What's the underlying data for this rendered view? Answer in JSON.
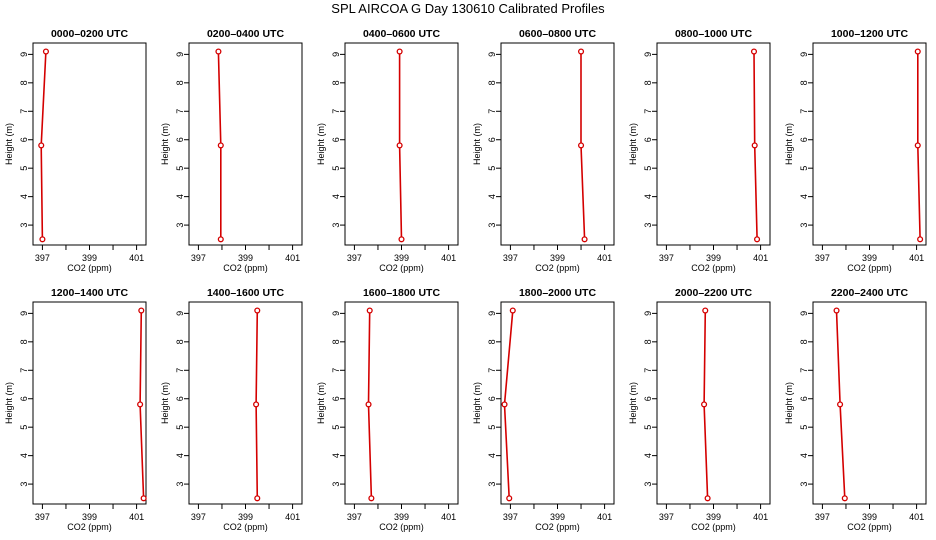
{
  "page": {
    "title": "SPL AIRCOA G  Day 130610  Calibrated Profiles"
  },
  "colors": {
    "profile": "#d40000",
    "axis": "#000000"
  },
  "chart_data": [
    {
      "type": "line",
      "title": "0000–0200 UTC",
      "xlabel": "CO2 (ppm)",
      "ylabel": "Height (m)",
      "xlim": [
        396.6,
        401.4
      ],
      "ylim": [
        2.3,
        9.4
      ],
      "xticks": [
        397,
        398,
        399,
        400,
        401
      ],
      "xtick_labels": [
        "397",
        "",
        "399",
        "",
        "401"
      ],
      "yticks": [
        3,
        4,
        5,
        6,
        7,
        8,
        9
      ],
      "series": [
        {
          "x": [
            397.0,
            396.95,
            397.15
          ],
          "y": [
            2.5,
            5.8,
            9.1
          ]
        }
      ]
    },
    {
      "type": "line",
      "title": "0200–0400 UTC",
      "xlabel": "CO2 (ppm)",
      "ylabel": "Height (m)",
      "xlim": [
        396.6,
        401.4
      ],
      "ylim": [
        2.3,
        9.4
      ],
      "xticks": [
        397,
        398,
        399,
        400,
        401
      ],
      "xtick_labels": [
        "397",
        "",
        "399",
        "",
        "401"
      ],
      "yticks": [
        3,
        4,
        5,
        6,
        7,
        8,
        9
      ],
      "series": [
        {
          "x": [
            397.95,
            397.95,
            397.85
          ],
          "y": [
            2.5,
            5.8,
            9.1
          ]
        }
      ]
    },
    {
      "type": "line",
      "title": "0400–0600 UTC",
      "xlabel": "CO2 (ppm)",
      "ylabel": "Height (m)",
      "xlim": [
        396.6,
        401.4
      ],
      "ylim": [
        2.3,
        9.4
      ],
      "xticks": [
        397,
        398,
        399,
        400,
        401
      ],
      "xtick_labels": [
        "397",
        "",
        "399",
        "",
        "401"
      ],
      "yticks": [
        3,
        4,
        5,
        6,
        7,
        8,
        9
      ],
      "series": [
        {
          "x": [
            399.0,
            398.92,
            398.92
          ],
          "y": [
            2.5,
            5.8,
            9.1
          ]
        }
      ]
    },
    {
      "type": "line",
      "title": "0600–0800 UTC",
      "xlabel": "CO2 (ppm)",
      "ylabel": "Height (m)",
      "xlim": [
        396.6,
        401.4
      ],
      "ylim": [
        2.3,
        9.4
      ],
      "xticks": [
        397,
        398,
        399,
        400,
        401
      ],
      "xtick_labels": [
        "397",
        "",
        "399",
        "",
        "401"
      ],
      "yticks": [
        3,
        4,
        5,
        6,
        7,
        8,
        9
      ],
      "series": [
        {
          "x": [
            400.15,
            400.0,
            400.0
          ],
          "y": [
            2.5,
            5.8,
            9.1
          ]
        }
      ]
    },
    {
      "type": "line",
      "title": "0800–1000 UTC",
      "xlabel": "CO2 (ppm)",
      "ylabel": "Height (m)",
      "xlim": [
        396.6,
        401.4
      ],
      "ylim": [
        2.3,
        9.4
      ],
      "xticks": [
        397,
        398,
        399,
        400,
        401
      ],
      "xtick_labels": [
        "397",
        "",
        "399",
        "",
        "401"
      ],
      "yticks": [
        3,
        4,
        5,
        6,
        7,
        8,
        9
      ],
      "series": [
        {
          "x": [
            400.85,
            400.75,
            400.72
          ],
          "y": [
            2.5,
            5.8,
            9.1
          ]
        }
      ]
    },
    {
      "type": "line",
      "title": "1000–1200 UTC",
      "xlabel": "CO2 (ppm)",
      "ylabel": "Height (m)",
      "xlim": [
        396.6,
        401.4
      ],
      "ylim": [
        2.3,
        9.4
      ],
      "xticks": [
        397,
        398,
        399,
        400,
        401
      ],
      "xtick_labels": [
        "397",
        "",
        "399",
        "",
        "401"
      ],
      "yticks": [
        3,
        4,
        5,
        6,
        7,
        8,
        9
      ],
      "series": [
        {
          "x": [
            401.15,
            401.05,
            401.05
          ],
          "y": [
            2.5,
            5.8,
            9.1
          ]
        }
      ]
    },
    {
      "type": "line",
      "title": "1200–1400 UTC",
      "xlabel": "CO2 (ppm)",
      "ylabel": "Height (m)",
      "xlim": [
        396.6,
        401.4
      ],
      "ylim": [
        2.3,
        9.4
      ],
      "xticks": [
        397,
        398,
        399,
        400,
        401
      ],
      "xtick_labels": [
        "397",
        "",
        "399",
        "",
        "401"
      ],
      "yticks": [
        3,
        4,
        5,
        6,
        7,
        8,
        9
      ],
      "series": [
        {
          "x": [
            401.3,
            401.15,
            401.2
          ],
          "y": [
            2.5,
            5.8,
            9.1
          ]
        }
      ]
    },
    {
      "type": "line",
      "title": "1400–1600 UTC",
      "xlabel": "CO2 (ppm)",
      "ylabel": "Height (m)",
      "xlim": [
        396.6,
        401.4
      ],
      "ylim": [
        2.3,
        9.4
      ],
      "xticks": [
        397,
        398,
        399,
        400,
        401
      ],
      "xtick_labels": [
        "397",
        "",
        "399",
        "",
        "401"
      ],
      "yticks": [
        3,
        4,
        5,
        6,
        7,
        8,
        9
      ],
      "series": [
        {
          "x": [
            399.5,
            399.45,
            399.5
          ],
          "y": [
            2.5,
            5.8,
            9.1
          ]
        }
      ]
    },
    {
      "type": "line",
      "title": "1600–1800 UTC",
      "xlabel": "CO2 (ppm)",
      "ylabel": "Height (m)",
      "xlim": [
        396.6,
        401.4
      ],
      "ylim": [
        2.3,
        9.4
      ],
      "xticks": [
        397,
        398,
        399,
        400,
        401
      ],
      "xtick_labels": [
        "397",
        "",
        "399",
        "",
        "401"
      ],
      "yticks": [
        3,
        4,
        5,
        6,
        7,
        8,
        9
      ],
      "series": [
        {
          "x": [
            397.72,
            397.6,
            397.65
          ],
          "y": [
            2.5,
            5.8,
            9.1
          ]
        }
      ]
    },
    {
      "type": "line",
      "title": "1800–2000 UTC",
      "xlabel": "CO2 (ppm)",
      "ylabel": "Height (m)",
      "xlim": [
        396.6,
        401.4
      ],
      "ylim": [
        2.3,
        9.4
      ],
      "xticks": [
        397,
        398,
        399,
        400,
        401
      ],
      "xtick_labels": [
        "397",
        "",
        "399",
        "",
        "401"
      ],
      "yticks": [
        3,
        4,
        5,
        6,
        7,
        8,
        9
      ],
      "series": [
        {
          "x": [
            396.95,
            396.75,
            397.1
          ],
          "y": [
            2.5,
            5.8,
            9.1
          ]
        }
      ]
    },
    {
      "type": "line",
      "title": "2000–2200 UTC",
      "xlabel": "CO2 (ppm)",
      "ylabel": "Height (m)",
      "xlim": [
        396.6,
        401.4
      ],
      "ylim": [
        2.3,
        9.4
      ],
      "xticks": [
        397,
        398,
        399,
        400,
        401
      ],
      "xtick_labels": [
        "397",
        "",
        "399",
        "",
        "401"
      ],
      "yticks": [
        3,
        4,
        5,
        6,
        7,
        8,
        9
      ],
      "series": [
        {
          "x": [
            398.75,
            398.6,
            398.65
          ],
          "y": [
            2.5,
            5.8,
            9.1
          ]
        }
      ]
    },
    {
      "type": "line",
      "title": "2200–2400 UTC",
      "xlabel": "CO2 (ppm)",
      "ylabel": "Height (m)",
      "xlim": [
        396.6,
        401.4
      ],
      "ylim": [
        2.3,
        9.4
      ],
      "xticks": [
        397,
        398,
        399,
        400,
        401
      ],
      "xtick_labels": [
        "397",
        "",
        "399",
        "",
        "401"
      ],
      "yticks": [
        3,
        4,
        5,
        6,
        7,
        8,
        9
      ],
      "series": [
        {
          "x": [
            397.95,
            397.75,
            397.6
          ],
          "y": [
            2.5,
            5.8,
            9.1
          ]
        }
      ]
    }
  ]
}
